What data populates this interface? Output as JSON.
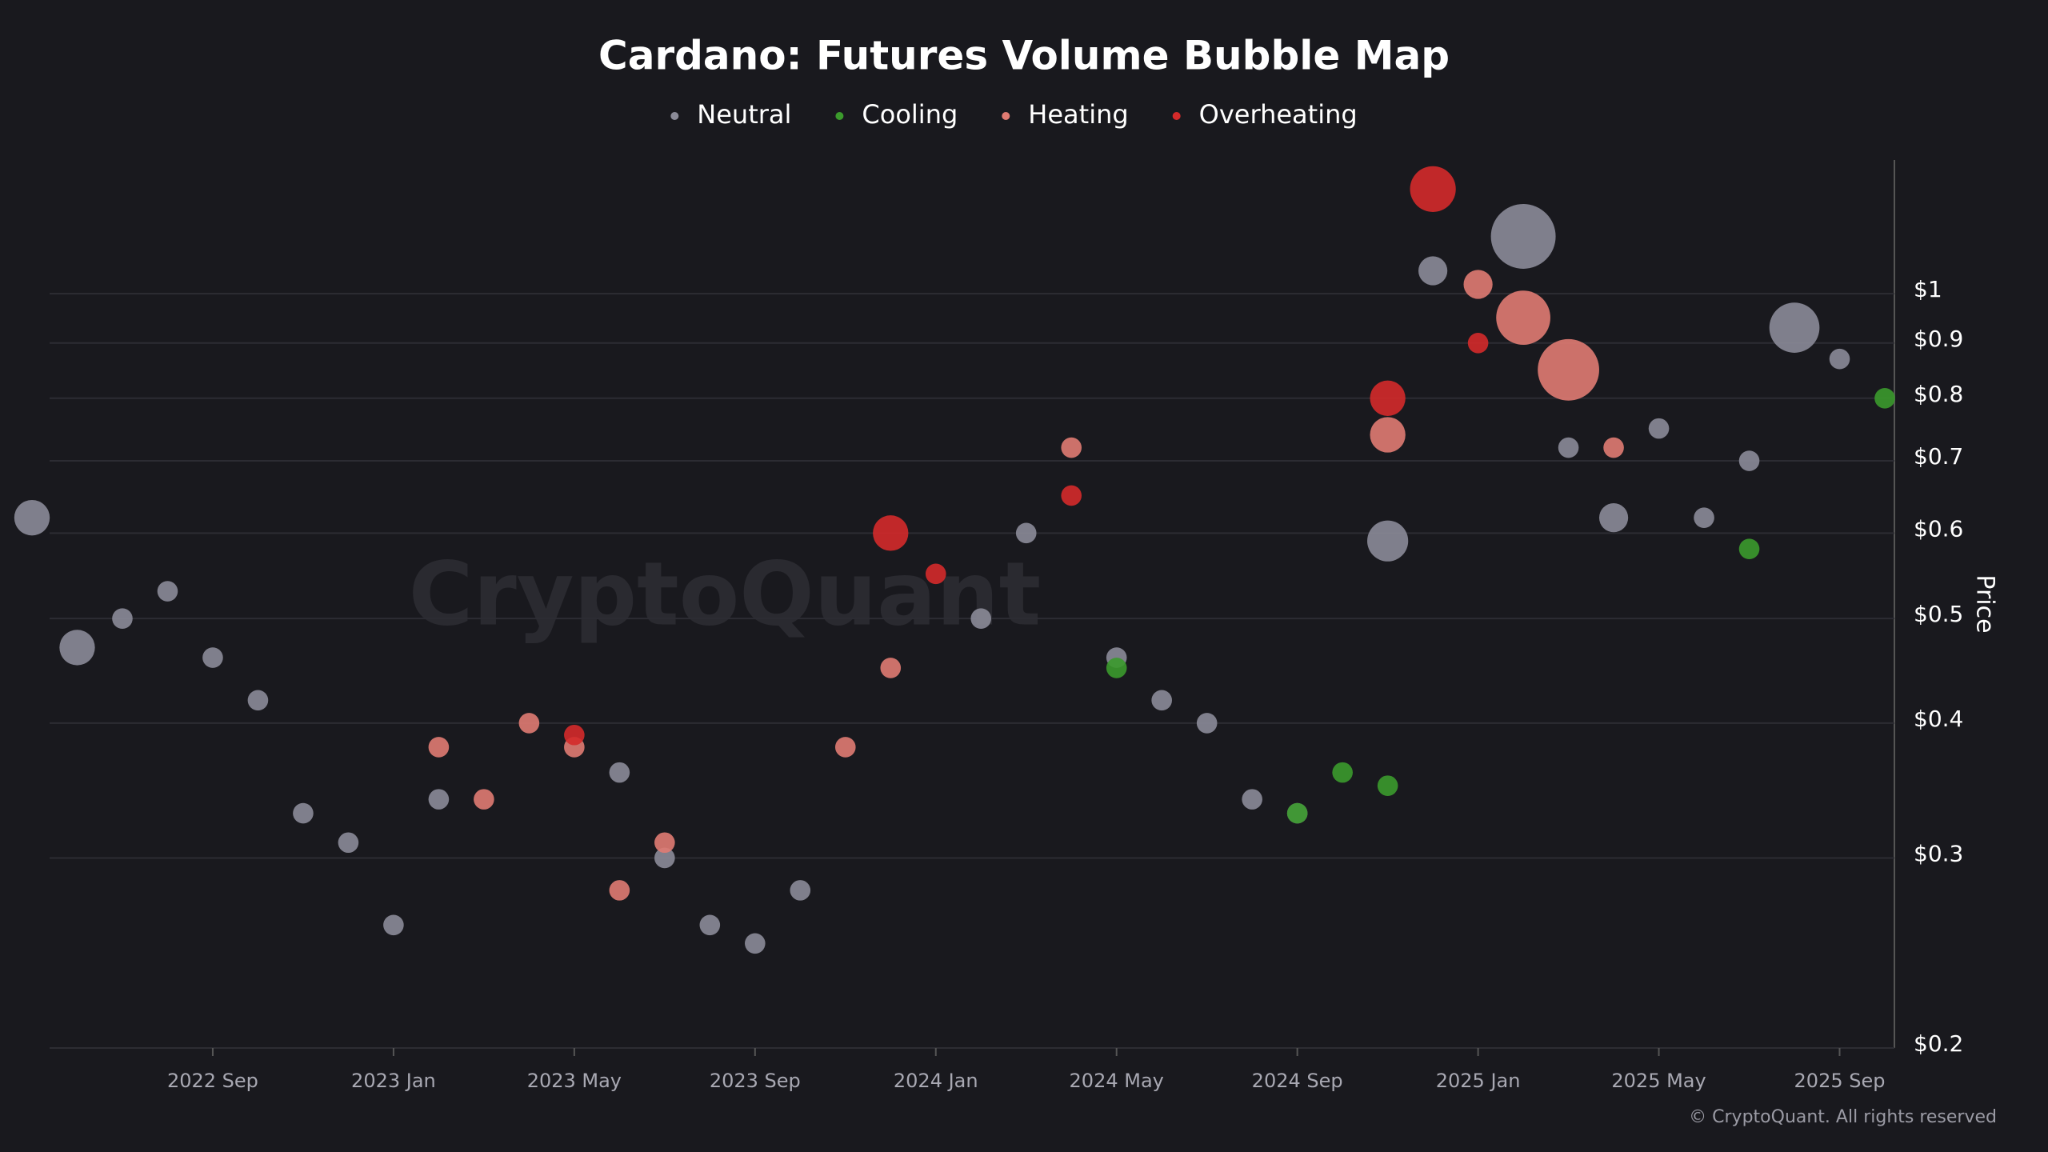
{
  "chart_data": {
    "type": "bubble",
    "title": "Cardano: Futures Volume Bubble Map",
    "y_label": "Price",
    "watermark": "CryptoQuant",
    "footer": "© CryptoQuant. All rights reserved",
    "log_y": true,
    "grid": true,
    "legend_position": "top",
    "xlim": [
      "2022-05",
      "2025-10"
    ],
    "xticks": [
      {
        "value": "2022-09",
        "label": "2022 Sep"
      },
      {
        "value": "2023-01",
        "label": "2023 Jan"
      },
      {
        "value": "2023-05",
        "label": "2023 May"
      },
      {
        "value": "2023-09",
        "label": "2023 Sep"
      },
      {
        "value": "2024-01",
        "label": "2024 Jan"
      },
      {
        "value": "2024-05",
        "label": "2024 May"
      },
      {
        "value": "2024-09",
        "label": "2024 Sep"
      },
      {
        "value": "2025-01",
        "label": "2025 Jan"
      },
      {
        "value": "2025-05",
        "label": "2025 May"
      },
      {
        "value": "2025-09",
        "label": "2025 Sep"
      }
    ],
    "ylim": [
      0.2,
      1.33
    ],
    "yticks": [
      {
        "value": 0.2,
        "label": "$0.2"
      },
      {
        "value": 0.3,
        "label": "$0.3"
      },
      {
        "value": 0.4,
        "label": "$0.4"
      },
      {
        "value": 0.5,
        "label": "$0.5"
      },
      {
        "value": 0.6,
        "label": "$0.6"
      },
      {
        "value": 0.7,
        "label": "$0.7"
      },
      {
        "value": 0.8,
        "label": "$0.8"
      },
      {
        "value": 0.9,
        "label": "$0.9"
      },
      {
        "value": 1,
        "label": "$1"
      }
    ],
    "series": [
      {
        "name": "Neutral",
        "color": "#8b8b98",
        "x": [
          "2022-05",
          "2022-06",
          "2022-07",
          "2022-08",
          "2022-09",
          "2022-10",
          "2022-11",
          "2022-12",
          "2023-01",
          "2023-02",
          "2023-06",
          "2023-07",
          "2023-08",
          "2023-09",
          "2023-10",
          "2024-02",
          "2024-03",
          "2024-05",
          "2024-06",
          "2024-07",
          "2024-08",
          "2024-09",
          "2024-11",
          "2024-12",
          "2025-02",
          "2025-03",
          "2025-04",
          "2025-05",
          "2025-06",
          "2025-07",
          "2025-08",
          "2025-09"
        ],
        "values": [
          0.62,
          0.47,
          0.5,
          0.53,
          0.46,
          0.42,
          0.33,
          0.31,
          0.26,
          0.34,
          0.36,
          0.3,
          0.26,
          0.25,
          0.28,
          0.5,
          0.6,
          0.46,
          0.42,
          0.4,
          0.34,
          0.33,
          0.59,
          1.05,
          1.13,
          0.72,
          0.62,
          0.75,
          0.62,
          0.7,
          0.93,
          0.87
        ],
        "sizes": [
          3,
          3,
          1,
          1,
          1,
          1,
          1,
          1,
          1,
          1,
          1,
          1,
          1,
          1,
          1,
          1,
          1,
          1,
          1,
          1,
          1,
          1,
          4,
          2,
          10,
          1,
          2,
          1,
          1,
          1,
          6,
          1
        ]
      },
      {
        "name": "Cooling",
        "color": "#3b9a2c",
        "x": [
          "2024-05",
          "2024-09",
          "2024-10",
          "2024-11",
          "2025-07",
          "2025-10"
        ],
        "values": [
          0.45,
          0.33,
          0.36,
          0.35,
          0.58,
          0.8
        ],
        "sizes": [
          1,
          1,
          1,
          1,
          1,
          1
        ]
      },
      {
        "name": "Heating",
        "color": "#e07b72",
        "x": [
          "2023-02",
          "2023-03",
          "2023-04",
          "2023-05",
          "2023-06",
          "2023-07",
          "2023-11",
          "2023-12",
          "2024-04",
          "2024-11",
          "2025-01",
          "2025-02",
          "2025-03",
          "2025-04"
        ],
        "values": [
          0.38,
          0.34,
          0.4,
          0.38,
          0.28,
          0.31,
          0.38,
          0.45,
          0.72,
          0.74,
          1.02,
          0.95,
          0.85,
          0.72
        ],
        "sizes": [
          1,
          1,
          1,
          1,
          1,
          1,
          1,
          1,
          1,
          3,
          2,
          7,
          9,
          1
        ]
      },
      {
        "name": "Overheating",
        "color": "#d42a2a",
        "x": [
          "2023-05",
          "2023-12",
          "2024-01",
          "2024-04",
          "2024-11",
          "2024-12",
          "2025-01"
        ],
        "values": [
          0.39,
          0.6,
          0.55,
          0.65,
          0.8,
          1.25,
          0.9
        ],
        "sizes": [
          1,
          3,
          1,
          1,
          3,
          5,
          1
        ]
      }
    ]
  }
}
